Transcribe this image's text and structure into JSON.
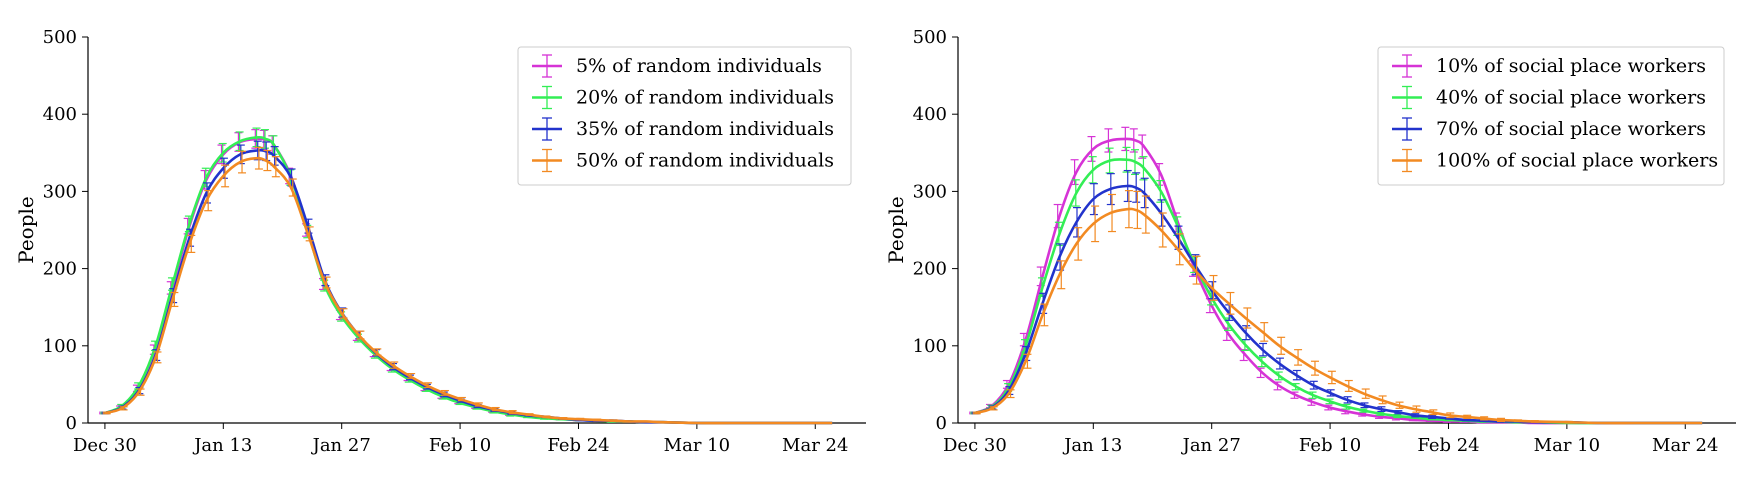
{
  "chart_data": [
    {
      "type": "line",
      "ylabel": "People",
      "ylim": [
        0,
        500
      ],
      "yticks": [
        0,
        100,
        200,
        300,
        400,
        500
      ],
      "xtick_labels": [
        "Dec 30",
        "Jan 13",
        "Jan 27",
        "Feb 10",
        "Feb 24",
        "Mar 10",
        "Mar 24"
      ],
      "xtick_days": [
        0,
        14,
        28,
        42,
        56,
        70,
        84
      ],
      "xlim_days": [
        -2,
        90
      ],
      "legend_position": "top-right",
      "error_bars": true,
      "series": [
        {
          "name": "5% of random individuals",
          "color": "#d633d6",
          "x": [
            0,
            2,
            4,
            6,
            8,
            10,
            12,
            14,
            16,
            18,
            19,
            20,
            22,
            24,
            26,
            28,
            30,
            32,
            34,
            36,
            38,
            40,
            42,
            44,
            46,
            48,
            50,
            52,
            54,
            56,
            58,
            60,
            62,
            64,
            66,
            70,
            74,
            78,
            82,
            86
          ],
          "y": [
            13,
            20,
            45,
            95,
            175,
            255,
            315,
            348,
            364,
            368,
            367,
            360,
            320,
            250,
            180,
            140,
            112,
            90,
            72,
            58,
            45,
            35,
            27,
            21,
            16,
            12,
            9,
            7,
            5,
            4,
            3,
            2,
            2,
            1,
            1,
            0,
            0,
            0,
            0,
            0
          ],
          "err": [
            1,
            2,
            4,
            6,
            8,
            10,
            12,
            12,
            12,
            12,
            12,
            12,
            10,
            8,
            7,
            6,
            5,
            4,
            4,
            3,
            3,
            3,
            2,
            2,
            2,
            2,
            1,
            1,
            1,
            1,
            1,
            1,
            0,
            0,
            0,
            0,
            0,
            0,
            0,
            0
          ]
        },
        {
          "name": "20% of random individuals",
          "color": "#33ee55",
          "x": [
            0,
            2,
            4,
            6,
            8,
            10,
            12,
            14,
            16,
            18,
            19,
            20,
            22,
            24,
            26,
            28,
            30,
            32,
            34,
            36,
            38,
            40,
            42,
            44,
            46,
            48,
            50,
            52,
            54,
            56,
            58,
            60,
            62,
            64,
            66,
            70,
            74,
            78,
            82,
            86
          ],
          "y": [
            13,
            22,
            48,
            100,
            180,
            258,
            318,
            350,
            365,
            370,
            368,
            360,
            318,
            248,
            178,
            138,
            110,
            88,
            70,
            56,
            44,
            34,
            26,
            20,
            15,
            11,
            8,
            6,
            5,
            4,
            3,
            2,
            2,
            1,
            1,
            0,
            0,
            0,
            0,
            0
          ],
          "err": [
            1,
            2,
            4,
            6,
            8,
            10,
            12,
            12,
            12,
            12,
            12,
            12,
            10,
            8,
            7,
            6,
            5,
            4,
            4,
            3,
            3,
            3,
            2,
            2,
            2,
            2,
            1,
            1,
            1,
            1,
            1,
            1,
            0,
            0,
            0,
            0,
            0,
            0,
            0,
            0
          ]
        },
        {
          "name": "35% of random individuals",
          "color": "#2233cc",
          "x": [
            0,
            2,
            4,
            6,
            8,
            10,
            12,
            14,
            16,
            18,
            19,
            20,
            22,
            24,
            26,
            28,
            30,
            32,
            34,
            36,
            38,
            40,
            42,
            44,
            46,
            48,
            50,
            52,
            54,
            56,
            58,
            60,
            62,
            64,
            66,
            70,
            74,
            78,
            82,
            86
          ],
          "y": [
            13,
            20,
            42,
            88,
            165,
            240,
            298,
            330,
            348,
            353,
            352,
            346,
            318,
            255,
            185,
            143,
            114,
            91,
            73,
            59,
            47,
            37,
            29,
            22,
            17,
            13,
            10,
            8,
            6,
            4,
            3,
            3,
            2,
            1,
            1,
            0,
            0,
            0,
            0,
            0
          ],
          "err": [
            1,
            2,
            4,
            7,
            9,
            11,
            13,
            13,
            12,
            12,
            12,
            12,
            11,
            9,
            7,
            6,
            5,
            4,
            4,
            3,
            3,
            3,
            2,
            2,
            2,
            2,
            1,
            1,
            1,
            1,
            1,
            1,
            0,
            0,
            0,
            0,
            0,
            0,
            0,
            0
          ]
        },
        {
          "name": "50% of random individuals",
          "color": "#f28a22",
          "x": [
            0,
            2,
            4,
            6,
            8,
            10,
            12,
            14,
            16,
            18,
            19,
            20,
            22,
            24,
            26,
            28,
            30,
            32,
            34,
            36,
            38,
            40,
            42,
            44,
            46,
            48,
            50,
            52,
            54,
            56,
            58,
            60,
            62,
            64,
            66,
            70,
            74,
            78,
            82,
            86
          ],
          "y": [
            13,
            19,
            40,
            85,
            160,
            232,
            288,
            320,
            338,
            343,
            340,
            332,
            305,
            245,
            182,
            142,
            114,
            92,
            75,
            61,
            49,
            39,
            31,
            24,
            18,
            14,
            11,
            8,
            6,
            5,
            4,
            3,
            2,
            2,
            1,
            0,
            0,
            0,
            0,
            0
          ],
          "err": [
            1,
            2,
            4,
            7,
            9,
            11,
            13,
            14,
            14,
            14,
            13,
            13,
            11,
            9,
            7,
            6,
            5,
            4,
            4,
            3,
            3,
            3,
            2,
            2,
            2,
            2,
            1,
            1,
            1,
            1,
            1,
            1,
            0,
            0,
            0,
            0,
            0,
            0,
            0,
            0
          ]
        }
      ]
    },
    {
      "type": "line",
      "ylabel": "People",
      "ylim": [
        0,
        500
      ],
      "yticks": [
        0,
        100,
        200,
        300,
        400,
        500
      ],
      "xtick_labels": [
        "Dec 30",
        "Jan 13",
        "Jan 27",
        "Feb 10",
        "Feb 24",
        "Mar 10",
        "Mar 24"
      ],
      "xtick_days": [
        0,
        14,
        28,
        42,
        56,
        70,
        84
      ],
      "xlim_days": [
        -2,
        90
      ],
      "legend_position": "top-right",
      "error_bars": true,
      "series": [
        {
          "name": "10% of social place workers",
          "color": "#d633d6",
          "x": [
            0,
            2,
            4,
            6,
            8,
            10,
            12,
            14,
            16,
            18,
            19,
            20,
            22,
            24,
            26,
            28,
            30,
            32,
            34,
            36,
            38,
            40,
            42,
            44,
            46,
            48,
            50,
            52,
            54,
            56,
            58,
            60,
            62,
            64,
            66,
            70,
            74,
            78,
            82,
            86
          ],
          "y": [
            13,
            22,
            50,
            108,
            190,
            268,
            325,
            355,
            366,
            368,
            366,
            358,
            322,
            260,
            200,
            152,
            115,
            88,
            65,
            48,
            36,
            27,
            20,
            15,
            11,
            8,
            6,
            4,
            3,
            2,
            2,
            1,
            1,
            1,
            0,
            0,
            0,
            0,
            0,
            0
          ],
          "err": [
            1,
            2,
            5,
            8,
            12,
            15,
            16,
            16,
            15,
            15,
            15,
            15,
            14,
            12,
            10,
            9,
            8,
            7,
            6,
            5,
            4,
            4,
            3,
            3,
            2,
            2,
            2,
            1,
            1,
            1,
            1,
            1,
            0,
            0,
            0,
            0,
            0,
            0,
            0,
            0
          ]
        },
        {
          "name": "40% of social place workers",
          "color": "#33ee55",
          "x": [
            0,
            2,
            4,
            6,
            8,
            10,
            12,
            14,
            16,
            18,
            19,
            20,
            22,
            24,
            26,
            28,
            30,
            32,
            34,
            36,
            38,
            40,
            42,
            44,
            46,
            48,
            50,
            52,
            54,
            56,
            58,
            60,
            62,
            64,
            66,
            70,
            74,
            78,
            82,
            86
          ],
          "y": [
            13,
            21,
            46,
            100,
            176,
            245,
            298,
            328,
            340,
            341,
            338,
            330,
            300,
            255,
            205,
            162,
            128,
            101,
            79,
            61,
            47,
            36,
            28,
            21,
            16,
            12,
            9,
            7,
            5,
            4,
            3,
            2,
            2,
            1,
            1,
            0,
            0,
            0,
            0,
            0
          ],
          "err": [
            1,
            2,
            5,
            8,
            12,
            15,
            17,
            17,
            16,
            16,
            16,
            15,
            14,
            12,
            10,
            9,
            8,
            7,
            6,
            5,
            4,
            4,
            3,
            3,
            2,
            2,
            2,
            1,
            1,
            1,
            1,
            1,
            0,
            0,
            0,
            0,
            0,
            0,
            0,
            0
          ]
        },
        {
          "name": "70% of social place workers",
          "color": "#2233cc",
          "x": [
            0,
            2,
            4,
            6,
            8,
            10,
            12,
            14,
            16,
            18,
            19,
            20,
            22,
            24,
            26,
            28,
            30,
            32,
            34,
            36,
            38,
            40,
            42,
            44,
            46,
            48,
            50,
            52,
            54,
            56,
            58,
            60,
            62,
            64,
            66,
            70,
            74,
            78,
            82,
            86
          ],
          "y": [
            13,
            20,
            42,
            90,
            155,
            215,
            260,
            290,
            303,
            307,
            305,
            298,
            272,
            240,
            205,
            172,
            143,
            117,
            95,
            77,
            62,
            49,
            39,
            30,
            23,
            18,
            14,
            10,
            8,
            6,
            4,
            3,
            2,
            2,
            1,
            1,
            0,
            0,
            0,
            0
          ],
          "err": [
            1,
            2,
            5,
            9,
            13,
            17,
            19,
            20,
            20,
            20,
            19,
            19,
            17,
            15,
            13,
            11,
            10,
            9,
            8,
            7,
            6,
            5,
            4,
            4,
            3,
            3,
            2,
            2,
            2,
            1,
            1,
            1,
            1,
            0,
            0,
            0,
            0,
            0,
            0,
            0
          ]
        },
        {
          "name": "100% of social place workers",
          "color": "#f28a22",
          "x": [
            0,
            2,
            4,
            6,
            8,
            10,
            12,
            14,
            16,
            18,
            19,
            20,
            22,
            24,
            26,
            28,
            30,
            32,
            34,
            36,
            38,
            40,
            42,
            44,
            46,
            48,
            50,
            52,
            54,
            56,
            58,
            60,
            62,
            64,
            66,
            70,
            74,
            78,
            82,
            86
          ],
          "y": [
            13,
            19,
            38,
            80,
            140,
            192,
            232,
            258,
            272,
            277,
            276,
            270,
            250,
            225,
            198,
            175,
            155,
            136,
            118,
            100,
            85,
            71,
            59,
            48,
            38,
            30,
            23,
            18,
            14,
            10,
            8,
            6,
            4,
            3,
            2,
            1,
            0,
            0,
            0,
            0
          ],
          "err": [
            1,
            2,
            5,
            9,
            14,
            18,
            21,
            23,
            24,
            24,
            24,
            24,
            22,
            20,
            18,
            16,
            14,
            13,
            12,
            11,
            10,
            9,
            8,
            7,
            6,
            5,
            4,
            4,
            3,
            3,
            2,
            2,
            2,
            1,
            1,
            1,
            0,
            0,
            0,
            0
          ]
        }
      ]
    }
  ]
}
